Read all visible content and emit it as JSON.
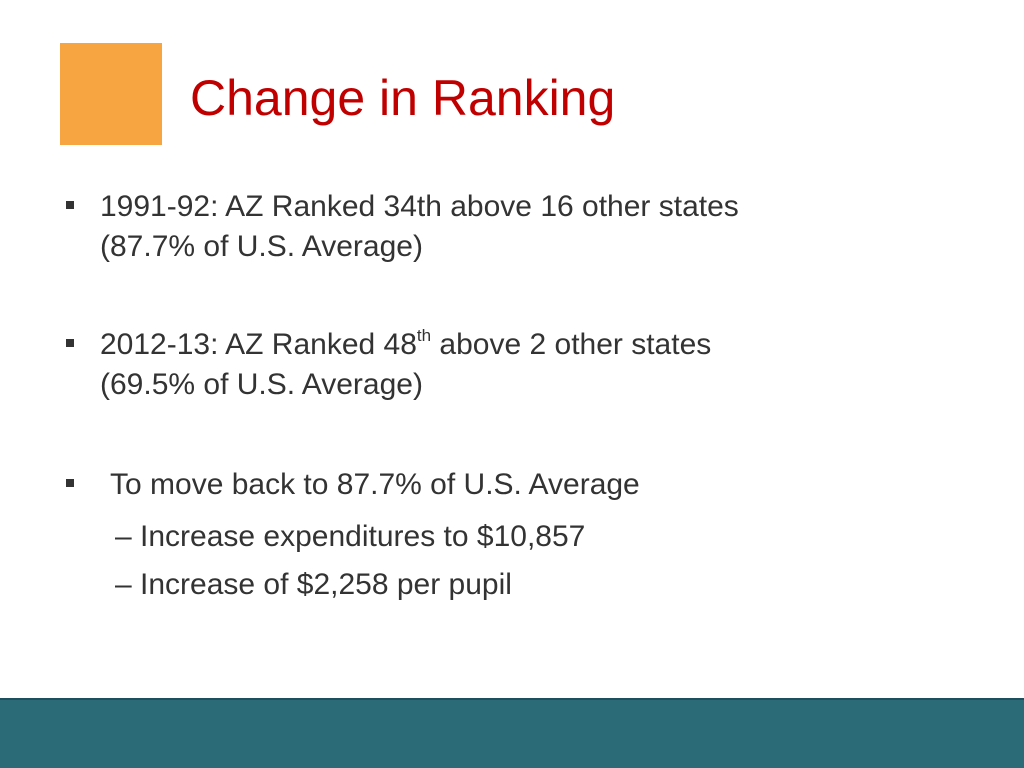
{
  "colors": {
    "accent_square": "#F7A540",
    "title": "#C00000",
    "body_text": "#333333",
    "footer_bar": "#2A6B77"
  },
  "slide": {
    "title": "Change in Ranking",
    "bullets": [
      {
        "line1": "1991-92: AZ Ranked 34th above 16 other states",
        "line2": "(87.7% of U.S. Average)"
      },
      {
        "line1_prefix": "2012-13: AZ Ranked 48",
        "line1_sup": "th",
        "line1_suffix": " above 2 other states",
        "line2": "(69.5% of U.S. Average)"
      },
      {
        "line1": "To move back to 87.7% of U.S. Average",
        "sub_items": [
          "– Increase expenditures to $10,857",
          "– Increase of $2,258 per pupil"
        ]
      }
    ]
  }
}
